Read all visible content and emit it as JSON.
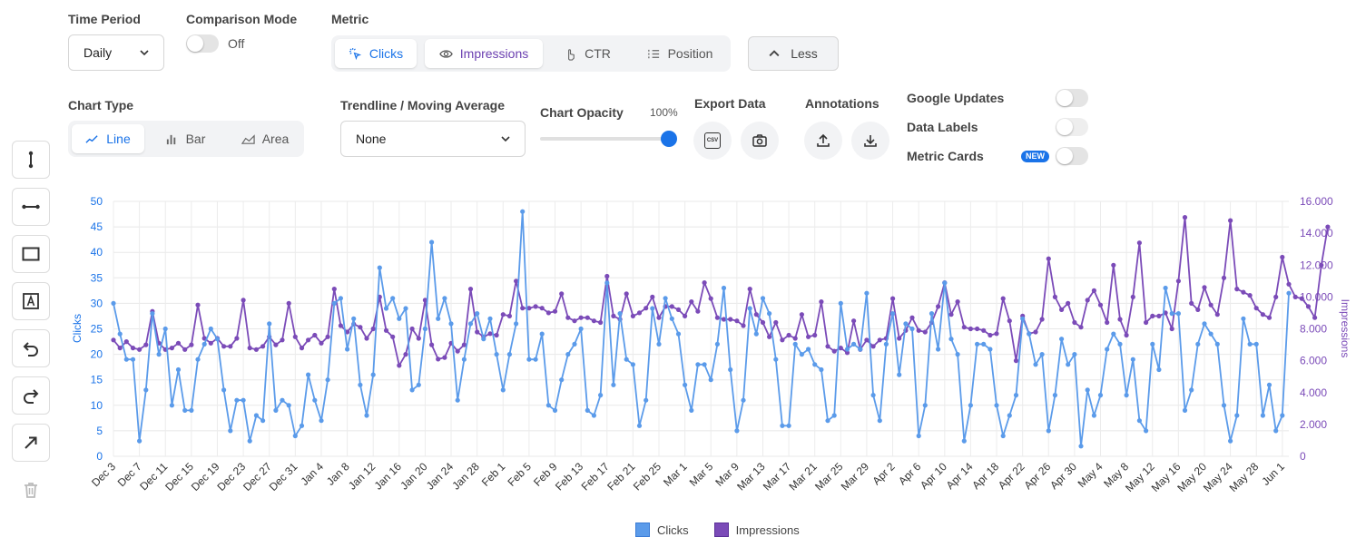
{
  "controls": {
    "time_period": {
      "label": "Time Period",
      "value": "Daily"
    },
    "comparison_mode": {
      "label": "Comparison Mode",
      "state": "Off"
    },
    "metric": {
      "label": "Metric",
      "options": [
        "Clicks",
        "Impressions",
        "CTR",
        "Position"
      ],
      "less_label": "Less"
    },
    "chart_type": {
      "label": "Chart Type",
      "options": [
        "Line",
        "Bar",
        "Area"
      ]
    },
    "trendline": {
      "label": "Trendline / Moving Average",
      "value": "None"
    },
    "opacity": {
      "label": "Chart Opacity",
      "value_text": "100%",
      "value": 1.0
    },
    "export": {
      "label": "Export Data",
      "csv_text": "CSV"
    },
    "annotations": {
      "label": "Annotations"
    },
    "switches": [
      {
        "label": "Google Updates",
        "on": false
      },
      {
        "label": "Data Labels",
        "on": false
      },
      {
        "label": "Metric Cards",
        "on": false,
        "badge": "NEW"
      }
    ]
  },
  "toolbar_icons": [
    "vertical-line-icon",
    "horizontal-line-icon",
    "rectangle-icon",
    "text-box-icon",
    "undo-icon",
    "redo-icon",
    "arrow-icon",
    "trash-icon"
  ],
  "colors": {
    "clicks": "#5b9bea",
    "impressions": "#7b4bb8",
    "accent": "#1a73e8",
    "grid": "#e6e6e6"
  },
  "chart_data": {
    "type": "line",
    "xlabel": "",
    "ylabel_left": "Clicks",
    "ylabel_right": "Impressions",
    "ylim_left": [
      0,
      50
    ],
    "ylim_right": [
      0,
      16000
    ],
    "yticks_left": [
      "0",
      "5",
      "10",
      "15",
      "20",
      "25",
      "30",
      "35",
      "40",
      "45",
      "50"
    ],
    "yticks_right": [
      "0",
      "2.000",
      "4.000",
      "6.000",
      "8.000",
      "10.000",
      "12.000",
      "14.000",
      "16.000"
    ],
    "grid": true,
    "legend_position": "bottom-center",
    "start_date": "2023-12-03",
    "tick_every_days": 4,
    "tick_labels": [
      "Dec 3",
      "Dec 7",
      "Dec 11",
      "Dec 15",
      "Dec 19",
      "Dec 23",
      "Dec 27",
      "Dec 31",
      "Jan 4",
      "Jan 8",
      "Jan 12",
      "Jan 16",
      "Jan 20",
      "Jan 24",
      "Jan 28",
      "Feb 1",
      "Feb 5",
      "Feb 9",
      "Feb 13",
      "Feb 17",
      "Feb 21",
      "Feb 25",
      "Mar 1",
      "Mar 5",
      "Mar 9",
      "Mar 13",
      "Mar 17",
      "Mar 21",
      "Mar 25",
      "Mar 29",
      "Apr 2",
      "Apr 6",
      "Apr 10",
      "Apr 14",
      "Apr 18",
      "Apr 22",
      "Apr 26",
      "Apr 30",
      "May 4",
      "May 8",
      "May 12",
      "May 16",
      "May 20",
      "May 24",
      "May 28",
      "Jun 1"
    ],
    "series": [
      {
        "name": "Clicks",
        "axis": "left",
        "values": [
          30,
          24,
          19,
          19,
          3,
          13,
          28,
          20,
          25,
          10,
          17,
          9,
          9,
          19,
          22,
          25,
          23,
          13,
          5,
          11,
          11,
          3,
          8,
          7,
          26,
          9,
          11,
          10,
          4,
          6,
          16,
          11,
          7,
          15,
          30,
          31,
          21,
          27,
          14,
          8,
          16,
          37,
          29,
          31,
          27,
          29,
          13,
          14,
          25,
          42,
          27,
          31,
          26,
          11,
          19,
          26,
          28,
          23,
          27,
          20,
          13,
          20,
          26,
          48,
          19,
          19,
          24,
          10,
          9,
          15,
          20,
          22,
          25,
          9,
          8,
          12,
          34,
          14,
          28,
          19,
          18,
          6,
          11,
          29,
          22,
          31,
          27,
          24,
          14,
          9,
          18,
          18,
          15,
          22,
          33,
          17,
          5,
          11,
          29,
          24,
          31,
          28,
          19,
          6,
          6,
          22,
          20,
          21,
          18,
          17,
          7,
          8,
          30,
          21,
          22,
          21,
          32,
          12,
          7,
          22,
          28,
          16,
          26,
          25,
          4,
          10,
          28,
          21,
          34,
          23,
          20,
          3,
          10,
          22,
          22,
          21,
          10,
          4,
          8,
          12,
          27,
          24,
          18,
          20,
          5,
          12,
          23,
          18,
          20,
          2,
          13,
          8,
          12,
          21,
          24,
          22,
          12,
          19,
          7,
          5,
          22,
          17,
          33,
          28,
          28,
          9,
          13,
          22,
          26,
          24,
          22,
          10,
          3,
          8,
          27,
          22,
          22,
          8,
          14,
          5,
          8,
          32
        ]
      },
      {
        "name": "Impressions",
        "axis": "right",
        "values": [
          7300,
          6800,
          7200,
          6800,
          6700,
          7000,
          9100,
          7100,
          6700,
          6800,
          7100,
          6700,
          7000,
          9500,
          7400,
          7100,
          7400,
          6900,
          6900,
          7400,
          9800,
          6800,
          6700,
          6900,
          7500,
          7000,
          7300,
          9600,
          7500,
          6800,
          7300,
          7600,
          7100,
          7500,
          10500,
          8200,
          7800,
          8300,
          8100,
          7400,
          8000,
          10000,
          7900,
          7500,
          5700,
          6400,
          8000,
          7400,
          9800,
          7000,
          6100,
          6200,
          7100,
          6600,
          7000,
          10500,
          7800,
          7500,
          7700,
          7600,
          8900,
          8800,
          11000,
          9300,
          9300,
          9400,
          9300,
          9000,
          9100,
          10200,
          8700,
          8500,
          8700,
          8700,
          8500,
          8400,
          11300,
          8800,
          8600,
          10200,
          8800,
          9000,
          9300,
          10000,
          8700,
          9400,
          9400,
          9200,
          8800,
          9700,
          9100,
          10900,
          9900,
          8700,
          8600,
          8600,
          8500,
          8200,
          10500,
          8900,
          8400,
          7500,
          8400,
          7300,
          7600,
          7400,
          8900,
          7500,
          7600,
          9700,
          6900,
          6600,
          6800,
          6500,
          8500,
          6700,
          7300,
          6900,
          7300,
          7400,
          9900,
          7400,
          7900,
          8700,
          7900,
          7800,
          8400,
          9400,
          10900,
          8900,
          9700,
          8100,
          8000,
          8000,
          7900,
          7600,
          7700,
          9900,
          8500,
          6000,
          8800,
          7700,
          7800,
          8600,
          12400,
          10000,
          9200,
          9600,
          8400,
          8100,
          9800,
          10400,
          9500,
          8400,
          12000,
          8600,
          7600,
          10000,
          13400,
          8400,
          8800,
          8800,
          9000,
          8000,
          11000,
          15000,
          9600,
          9200,
          10600,
          9500,
          8900,
          11200,
          14800,
          10500,
          10300,
          10100,
          9300,
          8900,
          8700,
          10000,
          12500,
          10800,
          10000,
          9900,
          9400,
          8700,
          12000,
          14400
        ]
      }
    ]
  },
  "legend": [
    {
      "label": "Clicks",
      "color": "#5b9bea"
    },
    {
      "label": "Impressions",
      "color": "#7b4bb8"
    }
  ]
}
